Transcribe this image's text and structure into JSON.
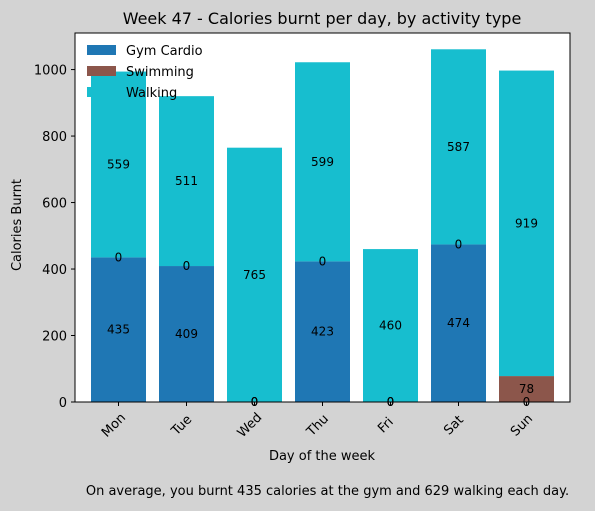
{
  "chart_data": {
    "type": "bar",
    "stacked": true,
    "title": "Week 47 - Calories burnt per day, by activity type",
    "xlabel": "Day of the week",
    "ylabel": "Calories Burnt",
    "categories": [
      "Mon",
      "Tue",
      "Wed",
      "Thu",
      "Fri",
      "Sat",
      "Sun"
    ],
    "ylim": [
      0,
      1110
    ],
    "yticks": [
      0,
      200,
      400,
      600,
      800,
      1000
    ],
    "legend_position": "top-left",
    "grid": false,
    "series": [
      {
        "name": "Gym Cardio",
        "color": "#1f77b4",
        "values": [
          435,
          409,
          0,
          423,
          0,
          474,
          0
        ]
      },
      {
        "name": "Swimming",
        "color": "#8c564b",
        "values": [
          0,
          0,
          0,
          0,
          0,
          0,
          78
        ]
      },
      {
        "name": "Walking",
        "color": "#17becf",
        "values": [
          559,
          511,
          765,
          599,
          460,
          587,
          919
        ]
      }
    ],
    "value_labels": [
      [
        "435",
        "409",
        "0",
        "423",
        "0",
        "474",
        "0"
      ],
      [
        "0",
        "0",
        "0",
        "0",
        "0",
        "0",
        "78"
      ],
      [
        "559",
        "511",
        "765",
        "599",
        "460",
        "587",
        "919"
      ]
    ]
  },
  "caption": "On average, you burnt 435 calories at the gym and 629 walking each day."
}
